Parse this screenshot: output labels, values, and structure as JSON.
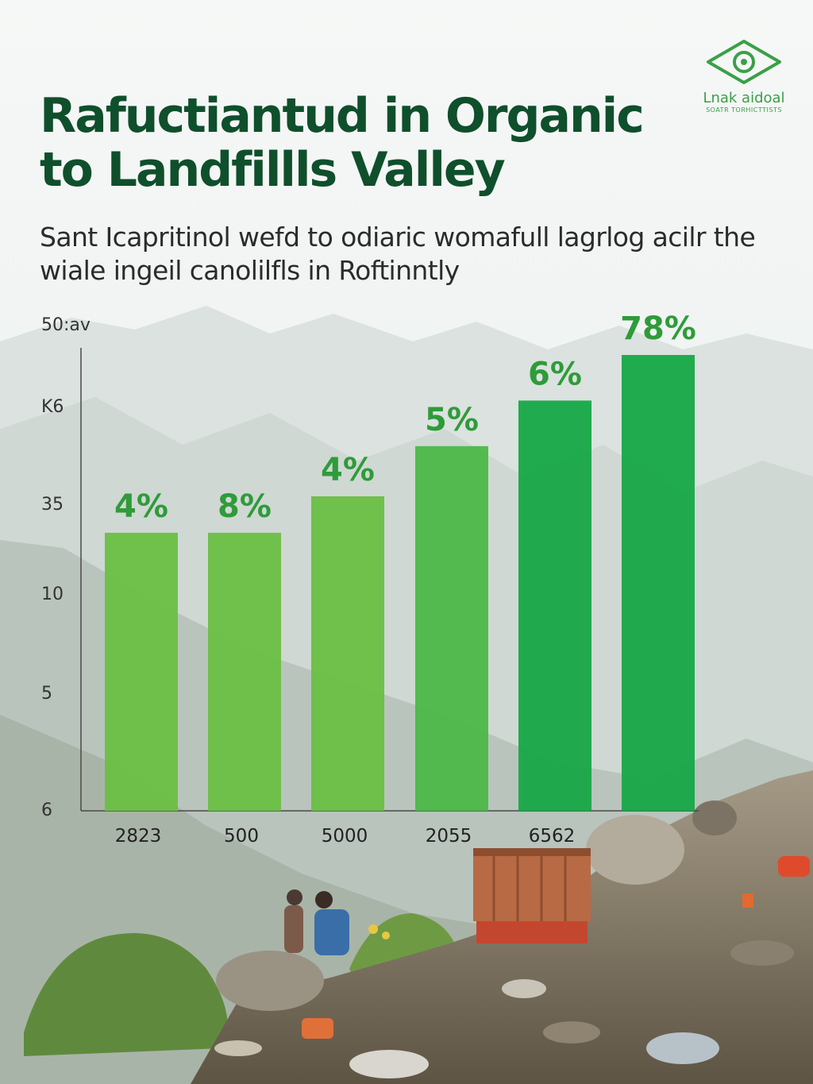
{
  "title": "Rafuctiantud in Organic to Landfillls Valley",
  "subtitle": "Sant Icapritinol wefd to odiaric womafull lagrlog acilr the wiale ingeil canolilfls in Roftinntly",
  "logo": {
    "name": "Lnak aidoal",
    "tagline": "SOATR TORHICTTISTS",
    "icon": "eye-icon",
    "color": "#3aa047"
  },
  "colors": {
    "title": "#0f4f2c",
    "bar_light": "#6abf45",
    "bar_mid": "#4cb848",
    "bar_dark": "#16a846",
    "label": "#2f9b3a"
  },
  "chart_data": {
    "type": "bar",
    "title": "",
    "xlabel": "",
    "ylabel": "",
    "y_tick_labels": [
      "50:av",
      "K6",
      "35",
      "10",
      "5",
      "6"
    ],
    "categories": [
      "2823",
      "500",
      "5000",
      "2055",
      "6562",
      ""
    ],
    "data_labels": [
      "4%",
      "8%",
      "4%",
      "5%",
      "6%",
      "78%"
    ],
    "values": [
      4,
      8,
      4,
      5,
      6,
      78
    ],
    "bar_fill_fraction": [
      0.61,
      0.61,
      0.69,
      0.8,
      0.9,
      1.0
    ],
    "grid": false,
    "legend": "none"
  }
}
